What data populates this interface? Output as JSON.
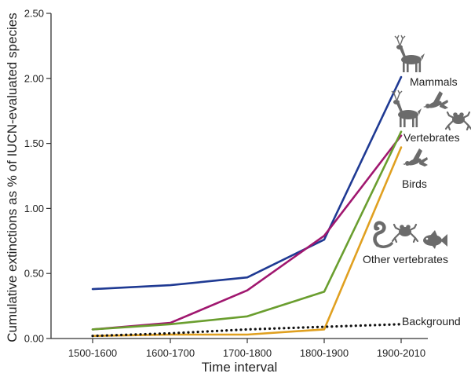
{
  "chart_data": {
    "type": "line",
    "title": "",
    "xlabel": "Time interval",
    "ylabel": "Cumulative extinctions as % of IUCN-evaluated species",
    "categories": [
      "1500-1600",
      "1600-1700",
      "1700-1800",
      "1800-1900",
      "1900-2010"
    ],
    "ylim": [
      0,
      2.5
    ],
    "yticks": [
      "0.00",
      "0.50",
      "1.00",
      "1.50",
      "2.00",
      "2.50"
    ],
    "grid": false,
    "series": [
      {
        "name": "Mammals",
        "color": "#1f3a93",
        "style": "solid",
        "icons": [
          "deer-icon"
        ],
        "values": [
          0.38,
          0.41,
          0.47,
          0.76,
          2.01
        ]
      },
      {
        "name": "Vertebrates",
        "color": "#a0176f",
        "style": "solid",
        "icons": [
          "deer-icon",
          "bird-icon",
          "frog-icon"
        ],
        "values": [
          0.07,
          0.12,
          0.37,
          0.79,
          1.56
        ]
      },
      {
        "name": "Birds",
        "color": "#6a9e2f",
        "style": "solid",
        "icons": [
          "bird-icon"
        ],
        "values": [
          0.07,
          0.11,
          0.17,
          0.36,
          1.59
        ]
      },
      {
        "name": "Other vertebrates",
        "color": "#e0a020",
        "style": "solid",
        "icons": [
          "snake-icon",
          "frog-icon",
          "fish-icon"
        ],
        "values": [
          0.02,
          0.03,
          0.03,
          0.07,
          1.47
        ]
      },
      {
        "name": "Background",
        "color": "#111111",
        "style": "dotted",
        "icons": [],
        "values": [
          0.02,
          0.04,
          0.07,
          0.09,
          0.11
        ]
      }
    ]
  }
}
